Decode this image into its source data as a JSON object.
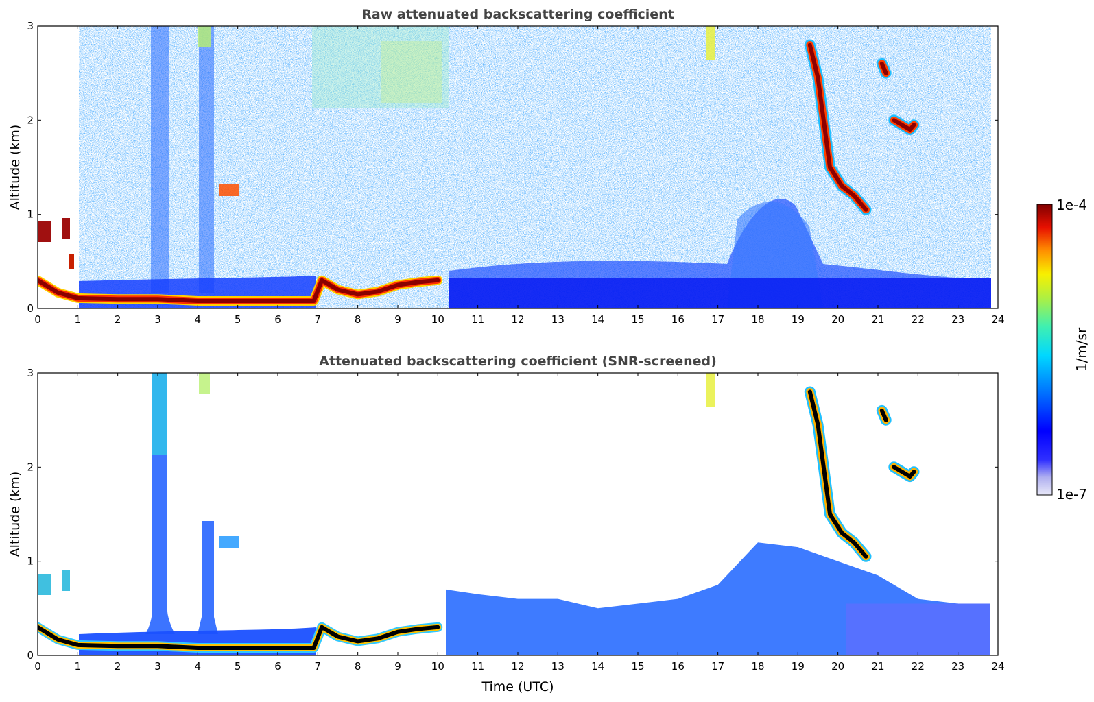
{
  "chart_data": [
    {
      "type": "heatmap",
      "title": "Raw attenuated backscattering coefficient",
      "xlabel": "",
      "ylabel": "Altitude (km)",
      "xlim": [
        0,
        24
      ],
      "ylim": [
        0,
        3
      ],
      "xticks": [
        "0",
        "1",
        "2",
        "3",
        "4",
        "5",
        "6",
        "7",
        "8",
        "9",
        "10",
        "11",
        "12",
        "13",
        "14",
        "15",
        "16",
        "17",
        "18",
        "19",
        "20",
        "21",
        "22",
        "23",
        "24"
      ],
      "yticks": [
        "0",
        "1",
        "2",
        "3"
      ],
      "features": [
        {
          "kind": "boundary_layer_top",
          "x": [
            0,
            0.5,
            1,
            2,
            3,
            4,
            5,
            6,
            6.9,
            7.1,
            7.5,
            8,
            8.5,
            9,
            9.5,
            10.0
          ],
          "y": [
            0.3,
            0.17,
            0.11,
            0.1,
            0.1,
            0.08,
            0.08,
            0.08,
            0.08,
            0.3,
            0.2,
            0.15,
            0.18,
            0.25,
            0.28,
            0.3
          ]
        },
        {
          "kind": "cloud",
          "x": [
            19.3,
            19.5,
            19.8,
            20.1,
            20.4,
            20.7
          ],
          "y": [
            2.8,
            2.45,
            1.5,
            1.3,
            1.2,
            1.05
          ]
        },
        {
          "kind": "cloud",
          "x": [
            21.4,
            21.6,
            21.8,
            21.9
          ],
          "y": [
            2.0,
            1.95,
            1.9,
            1.95
          ]
        },
        {
          "kind": "cloud",
          "x": [
            21.1,
            21.2
          ],
          "y": [
            2.6,
            2.5
          ]
        }
      ]
    },
    {
      "type": "heatmap",
      "title": "Attenuated backscattering coefficient (SNR-screened)",
      "xlabel": "Time (UTC)",
      "ylabel": "Altitude (km)",
      "xlim": [
        0,
        24
      ],
      "ylim": [
        0,
        3
      ],
      "xticks": [
        "0",
        "1",
        "2",
        "3",
        "4",
        "5",
        "6",
        "7",
        "8",
        "9",
        "10",
        "11",
        "12",
        "13",
        "14",
        "15",
        "16",
        "17",
        "18",
        "19",
        "20",
        "21",
        "22",
        "23",
        "24"
      ],
      "yticks": [
        "0",
        "1",
        "2",
        "3"
      ],
      "features": [
        {
          "kind": "boundary_layer_top",
          "x": [
            0,
            0.5,
            1,
            2,
            3,
            4,
            5,
            6,
            6.9,
            7.1,
            7.5,
            8,
            8.5,
            9,
            9.5,
            10.0
          ],
          "y": [
            0.3,
            0.17,
            0.11,
            0.1,
            0.1,
            0.08,
            0.08,
            0.08,
            0.08,
            0.3,
            0.2,
            0.15,
            0.18,
            0.25,
            0.28,
            0.3
          ]
        },
        {
          "kind": "mixed_layer_top",
          "x": [
            10.2,
            11,
            12,
            13,
            14,
            15,
            16,
            17,
            18,
            19,
            20,
            21,
            22,
            23,
            23.8
          ],
          "y": [
            0.7,
            0.65,
            0.6,
            0.6,
            0.5,
            0.55,
            0.6,
            0.75,
            1.2,
            1.15,
            1.0,
            0.85,
            0.6,
            0.55,
            0.55
          ]
        }
      ]
    }
  ],
  "colorbar": {
    "label": "1/m/sr",
    "min_label": "1e-7",
    "max_label": "1e-4",
    "scale": "log",
    "colors": [
      "#e8e8f8",
      "#c8c8f0",
      "#9090e8",
      "#0000ff",
      "#0050ff",
      "#00a0ff",
      "#00e0e0",
      "#40f0a0",
      "#a0f040",
      "#f0f000",
      "#ffa000",
      "#ff3000",
      "#c00000",
      "#800000"
    ]
  }
}
